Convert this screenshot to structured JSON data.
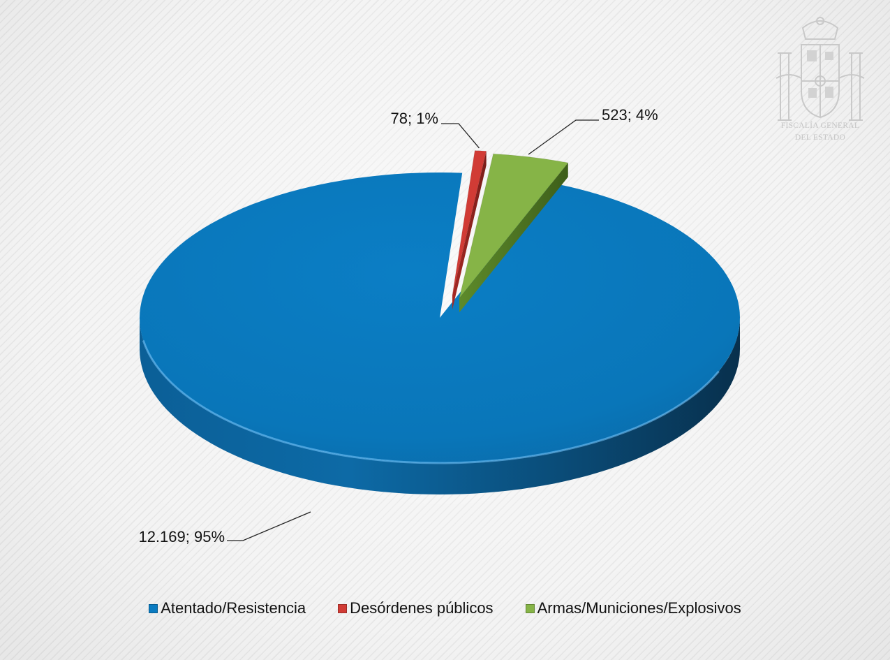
{
  "chart_data": {
    "type": "pie",
    "style": "3d",
    "title": "",
    "categories": [
      "Atentado/Resistencia",
      "Desórdenes públicos",
      "Armas/Municiones/Explosivos"
    ],
    "values": [
      12169,
      78,
      523
    ],
    "percentages": [
      95,
      1,
      4
    ],
    "colors": [
      "#0a7bc1",
      "#d13b35",
      "#86b447"
    ],
    "data_labels": [
      "12.169; 95%",
      "78; 1%",
      "523; 4%"
    ],
    "legend_position": "bottom"
  },
  "logo": {
    "caption_line1": "FISCALÍA GENERAL",
    "caption_line2": "DEL ESTADO"
  }
}
